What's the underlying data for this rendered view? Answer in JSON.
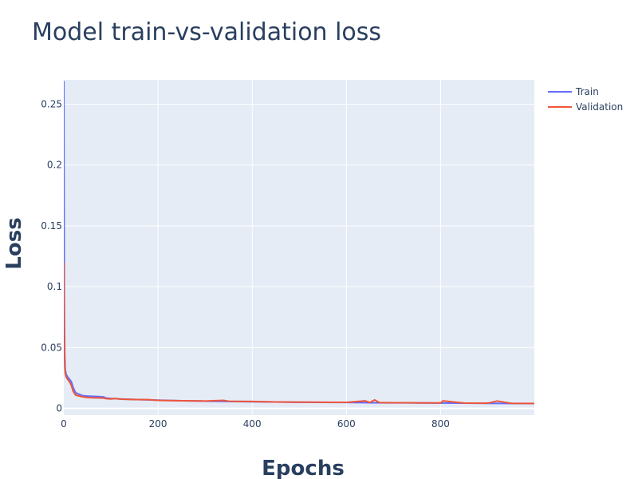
{
  "chart_data": {
    "type": "line",
    "title": "Model train-vs-validation loss",
    "xlabel": "Epochs",
    "ylabel": "Loss",
    "xlim": [
      0,
      999
    ],
    "ylim": [
      -0.0055,
      0.27
    ],
    "x_ticks": [
      0,
      200,
      400,
      600,
      800
    ],
    "y_ticks": [
      0,
      0.05,
      0.1,
      0.15,
      0.2,
      0.25
    ],
    "y_tick_labels": [
      "0",
      "0.05",
      "0.1",
      "0.15",
      "0.2",
      "0.25"
    ],
    "grid": true,
    "legend_position": "top-right",
    "plot_background": "#e5ecf6",
    "series": [
      {
        "name": "Train",
        "color": "#636efa",
        "x": [
          0,
          1,
          2,
          3,
          5,
          8,
          12,
          16,
          20,
          25,
          30,
          40,
          50,
          60,
          70,
          80,
          85,
          90,
          100,
          120,
          150,
          200,
          250,
          300,
          350,
          400,
          450,
          500,
          550,
          600,
          650,
          700,
          750,
          800,
          850,
          900,
          950,
          999
        ],
        "y": [
          0.269,
          0.09,
          0.045,
          0.032,
          0.028,
          0.026,
          0.024,
          0.022,
          0.017,
          0.013,
          0.012,
          0.0105,
          0.0102,
          0.01,
          0.0098,
          0.0096,
          0.0094,
          0.0085,
          0.0082,
          0.0078,
          0.0074,
          0.0068,
          0.0063,
          0.006,
          0.0057,
          0.0055,
          0.0053,
          0.0051,
          0.005,
          0.0049,
          0.0047,
          0.0046,
          0.0045,
          0.0044,
          0.0043,
          0.0042,
          0.0041,
          0.004
        ]
      },
      {
        "name": "Validation",
        "color": "#ef553b",
        "x": [
          0,
          1,
          2,
          3,
          5,
          8,
          12,
          16,
          20,
          25,
          30,
          40,
          50,
          60,
          70,
          80,
          85,
          90,
          100,
          110,
          120,
          150,
          180,
          200,
          250,
          300,
          340,
          350,
          400,
          450,
          500,
          550,
          600,
          640,
          650,
          660,
          670,
          700,
          750,
          800,
          805,
          850,
          900,
          920,
          950,
          999
        ],
        "y": [
          0.12,
          0.06,
          0.035,
          0.029,
          0.026,
          0.024,
          0.022,
          0.019,
          0.014,
          0.011,
          0.0105,
          0.0095,
          0.009,
          0.0088,
          0.0087,
          0.0086,
          0.0085,
          0.008,
          0.0078,
          0.0082,
          0.0076,
          0.0073,
          0.0072,
          0.0066,
          0.0063,
          0.0061,
          0.0066,
          0.0059,
          0.0057,
          0.0053,
          0.0052,
          0.0051,
          0.005,
          0.0062,
          0.0049,
          0.007,
          0.0048,
          0.0047,
          0.0046,
          0.0045,
          0.0062,
          0.0044,
          0.0043,
          0.0061,
          0.0042,
          0.0041
        ]
      }
    ]
  }
}
